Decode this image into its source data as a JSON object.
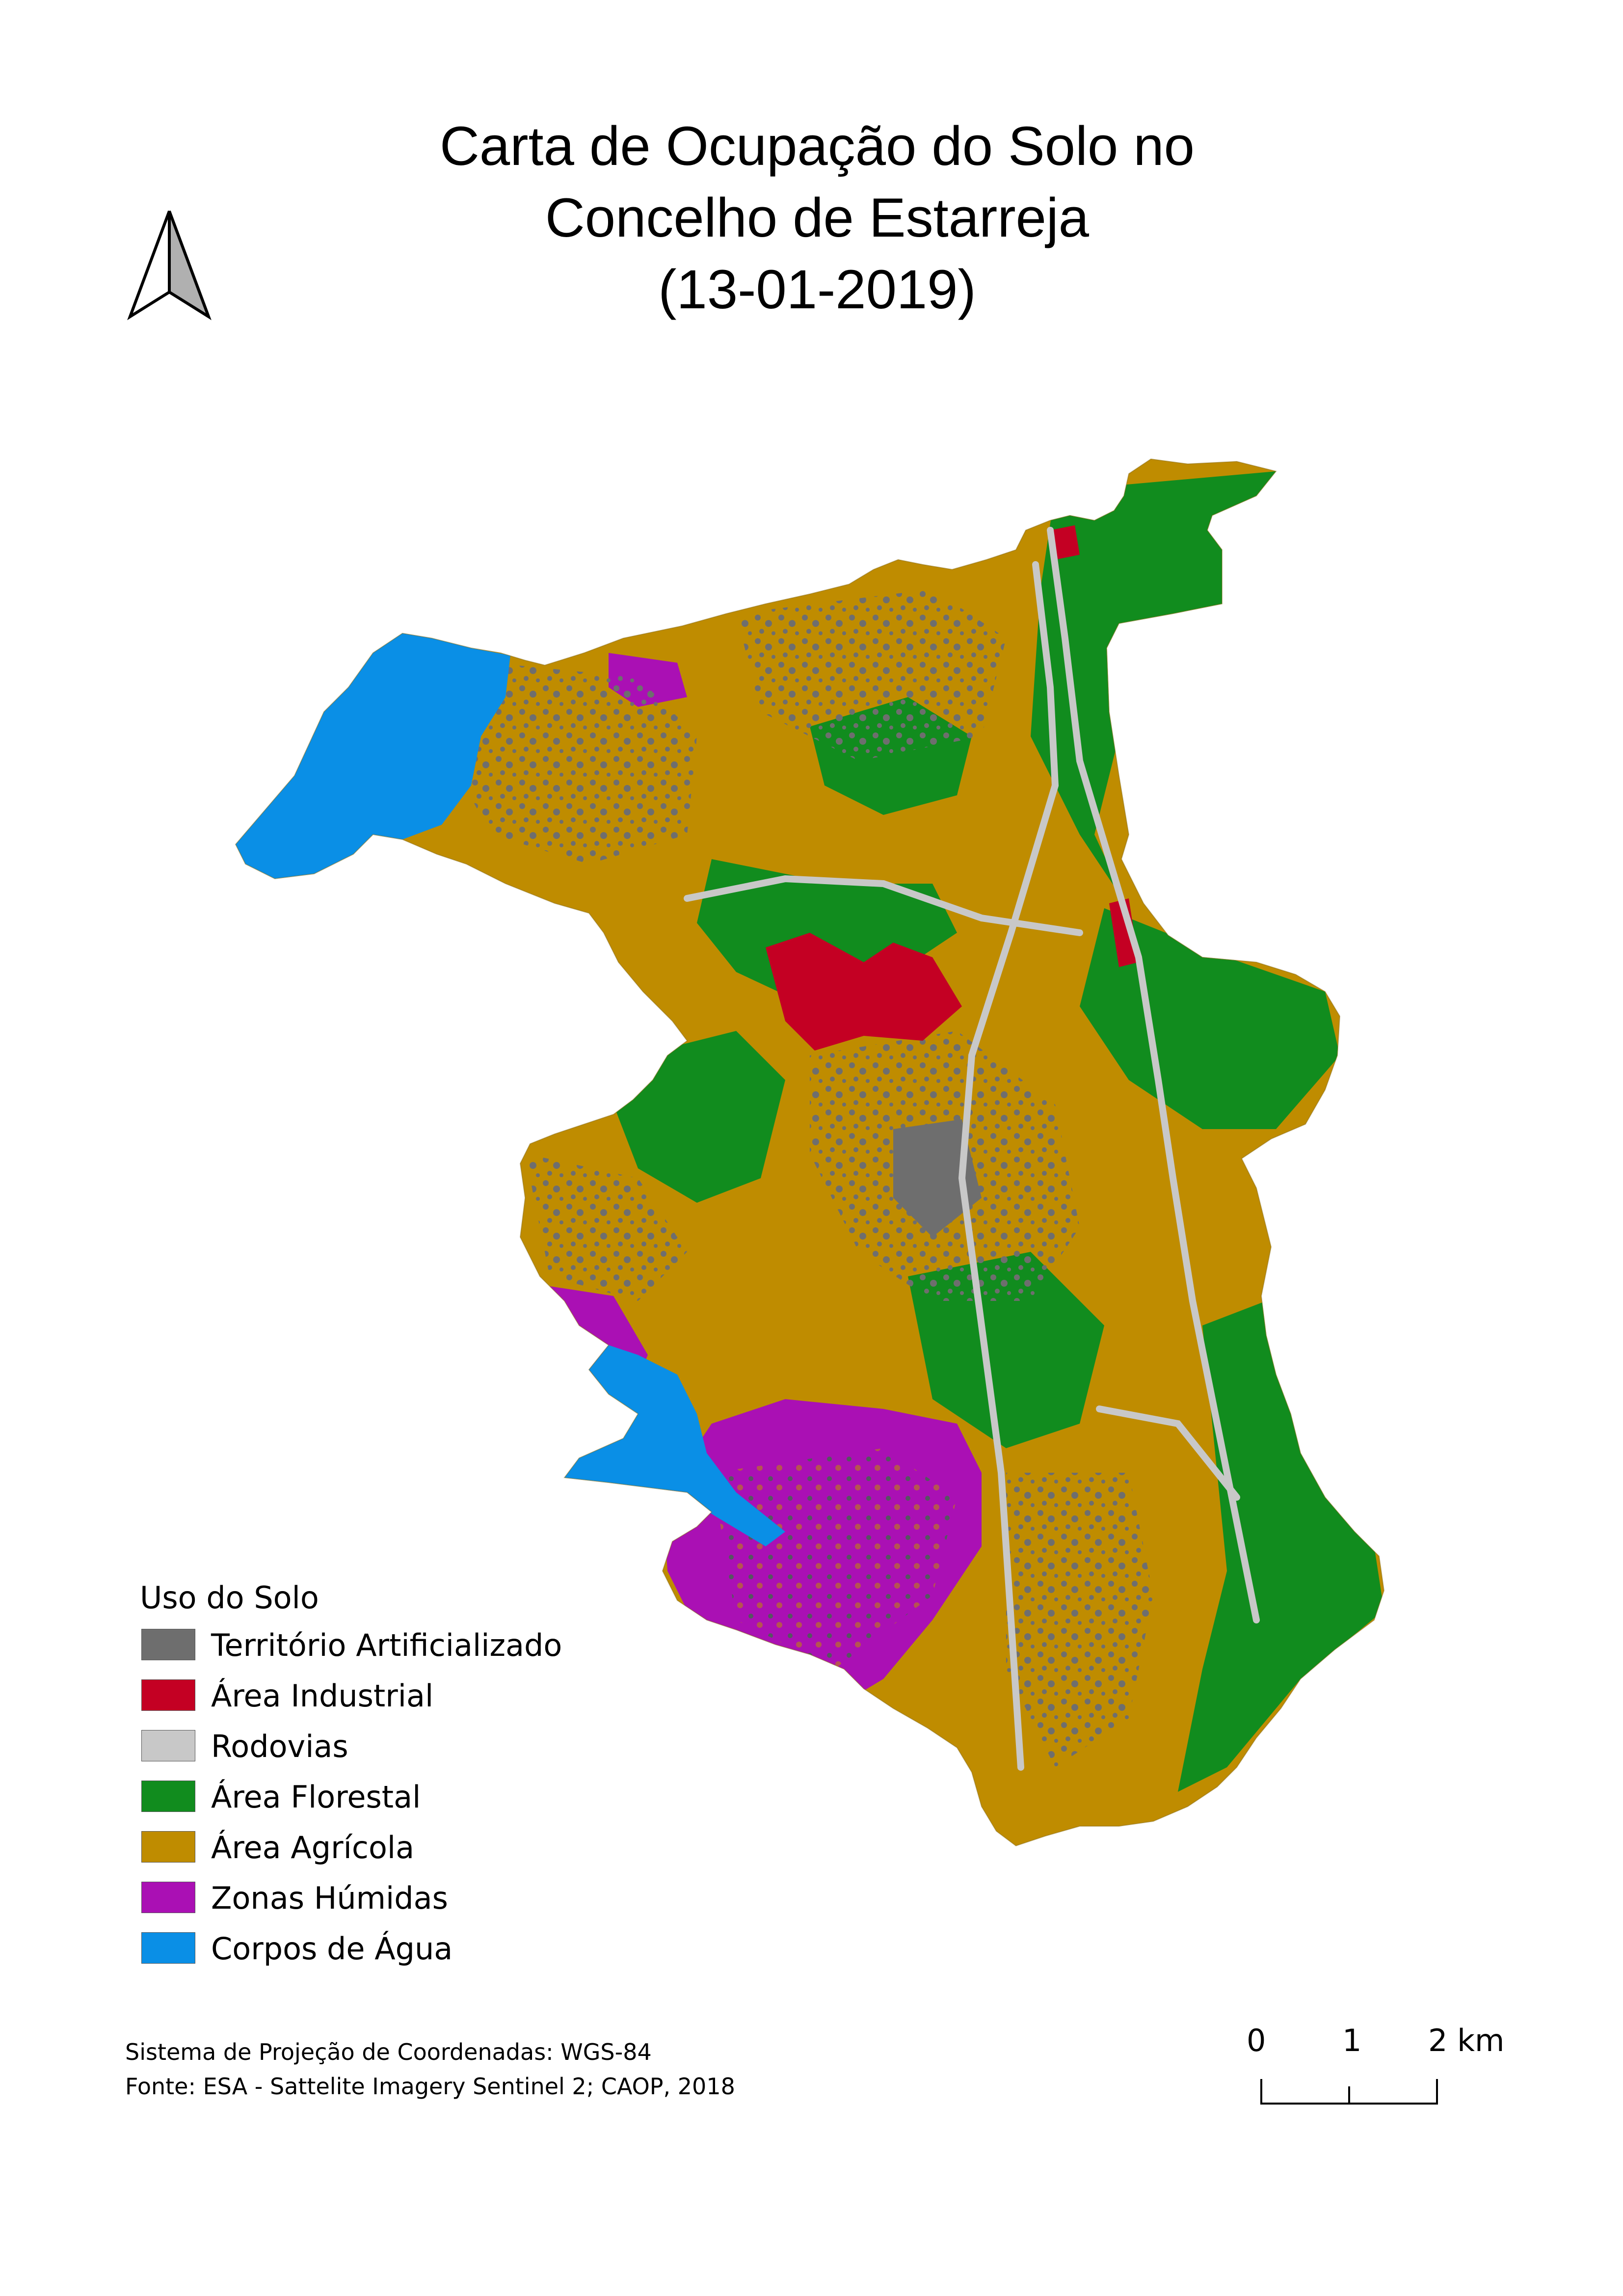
{
  "title": {
    "line1": "Carta de Ocupação do Solo no",
    "line2": "Concelho de Estarreja",
    "line3": "(13-01-2019)"
  },
  "legend": {
    "title": "Uso do Solo",
    "items": [
      {
        "label": "Território Artificializado",
        "color": "#6e6e6e"
      },
      {
        "label": "Área Industrial",
        "color": "#c40023"
      },
      {
        "label": "Rodovias",
        "color": "#c8c8c8"
      },
      {
        "label": "Área Florestal",
        "color": "#118c1e"
      },
      {
        "label": "Área Agrícola",
        "color": "#bf8c00"
      },
      {
        "label": "Zonas Húmidas",
        "color": "#aa10b4"
      },
      {
        "label": "Corpos de Água",
        "color": "#0a8fe6"
      }
    ]
  },
  "credits": {
    "projection": "Sistema de Projeção de Coordenadas: WGS-84",
    "source": "Fonte: ESA - Sattelite Imagery Sentinel 2; CAOP, 2018"
  },
  "scale": {
    "tick0": "0",
    "tick1": "1",
    "tick2": "2 km"
  },
  "north_arrow": {
    "icon": "north-arrow-icon"
  }
}
